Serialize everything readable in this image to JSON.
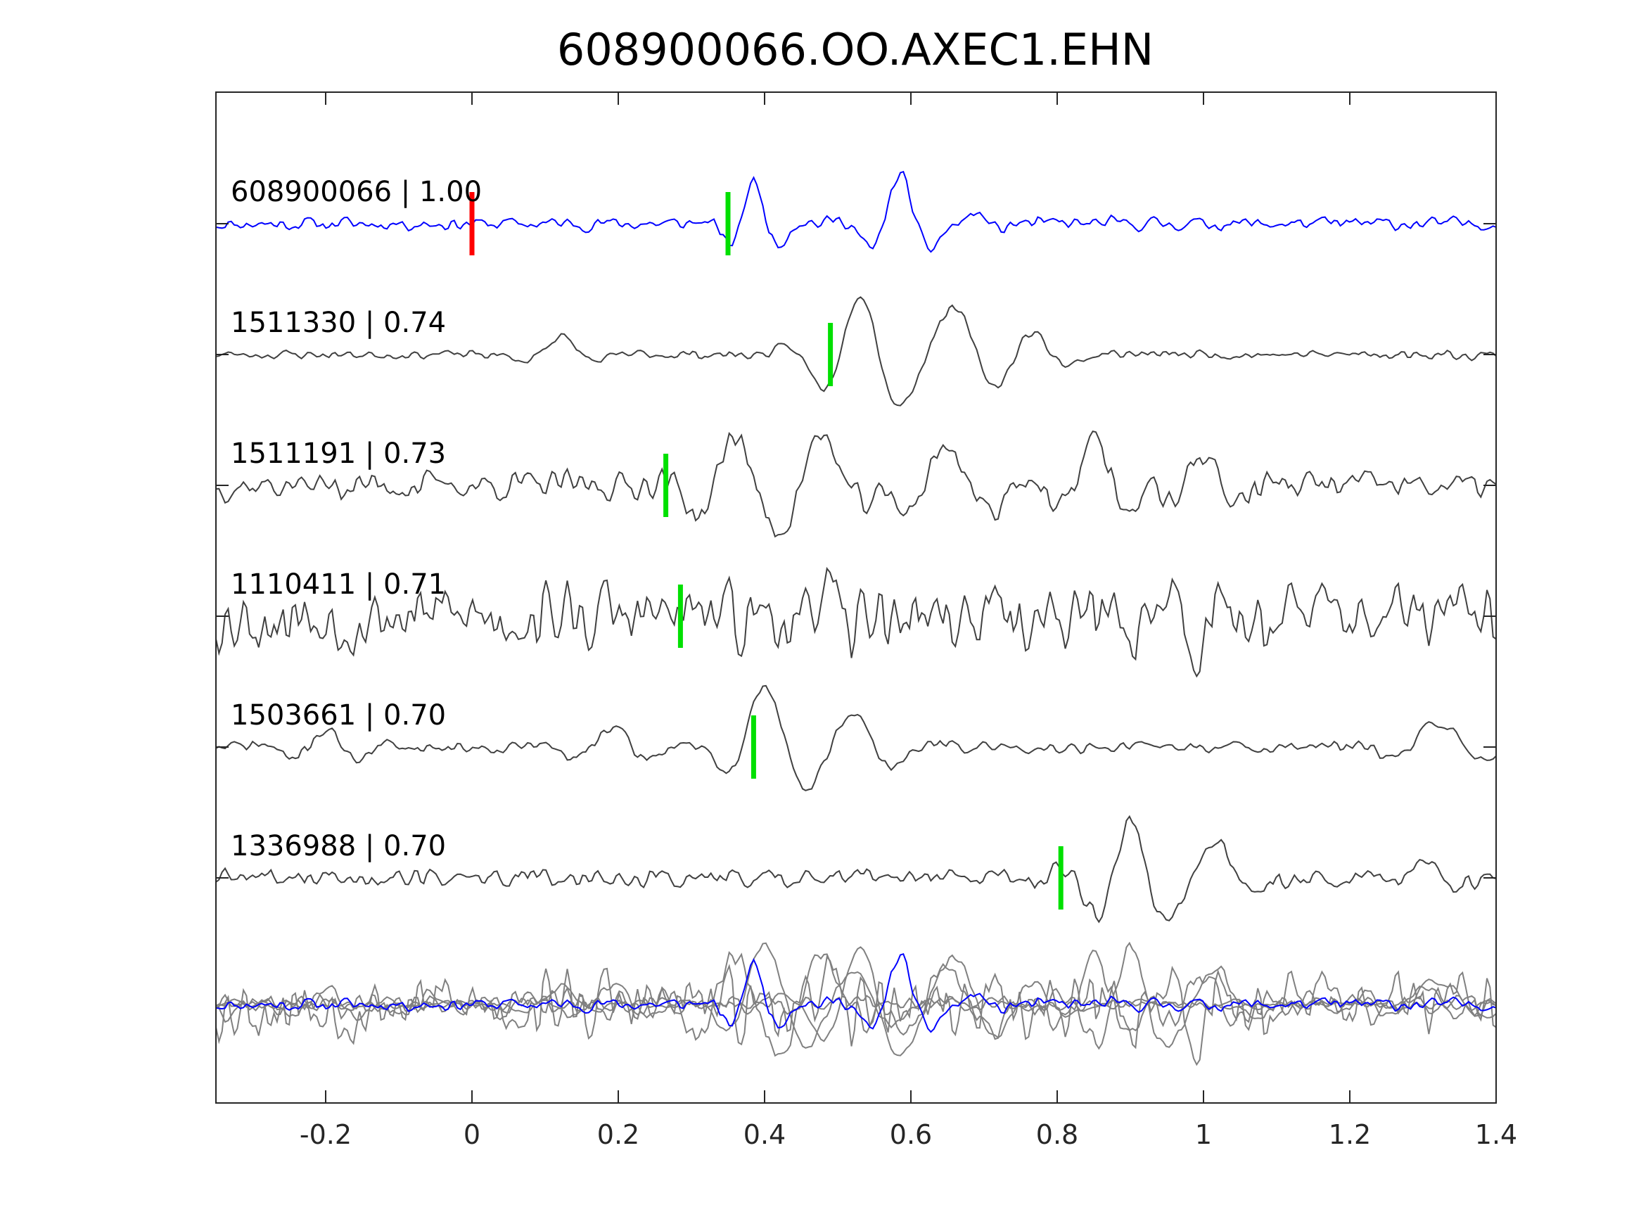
{
  "chart_data": {
    "type": "line",
    "title": "608900066.OO.AXEC1.EHN",
    "xlabel": "",
    "ylabel": "",
    "xlim": [
      -0.35,
      1.4
    ],
    "x_ticks": [
      "-0.2",
      "0",
      "0.2",
      "0.4",
      "0.6",
      "0.8",
      "1",
      "1.2",
      "1.4"
    ],
    "x_tick_values": [
      -0.2,
      0,
      0.2,
      0.4,
      0.6,
      0.8,
      1.0,
      1.2,
      1.4
    ],
    "grid": false,
    "legend": "none",
    "colors": {
      "reference": "#0000ff",
      "matches": "#404040",
      "stack": "#808080",
      "reference_pick": "#ff0000",
      "match_pick": "#00e000"
    },
    "series": [
      {
        "label": "608900066 | 1.00",
        "color": "reference",
        "pick_time": 0.0,
        "pick_color": "reference_pick",
        "detection_time": 0.35,
        "noise": 0.12,
        "seed": 11,
        "wavelets": [
          {
            "t": 0.385,
            "amp": 0.85,
            "freq": 13.0,
            "width": 0.03
          },
          {
            "t": 0.585,
            "amp": 1.0,
            "freq": 11.0,
            "width": 0.038
          },
          {
            "t": 0.69,
            "amp": 0.2,
            "freq": 14.0,
            "width": 0.03
          }
        ]
      },
      {
        "label": "1511330 | 0.74",
        "color": "matches",
        "detection_time": 0.49,
        "noise": 0.07,
        "seed": 23,
        "wavelets": [
          {
            "t": 0.53,
            "amp": 1.0,
            "freq": 9.0,
            "width": 0.05
          },
          {
            "t": 0.66,
            "amp": 0.75,
            "freq": 7.0,
            "width": 0.06
          },
          {
            "t": 0.76,
            "amp": 0.4,
            "freq": 8.0,
            "width": 0.05
          },
          {
            "t": 0.12,
            "amp": 0.3,
            "freq": 8.0,
            "width": 0.04
          }
        ]
      },
      {
        "label": "1511191 | 0.73",
        "color": "matches",
        "detection_time": 0.265,
        "noise": 0.22,
        "seed": 37,
        "wavelets": [
          {
            "t": 0.36,
            "amp": 0.85,
            "freq": 9.0,
            "width": 0.05
          },
          {
            "t": 0.48,
            "amp": 0.8,
            "freq": 8.0,
            "width": 0.05
          },
          {
            "t": 0.65,
            "amp": 0.7,
            "freq": 8.0,
            "width": 0.06
          },
          {
            "t": 0.85,
            "amp": 0.8,
            "freq": 9.0,
            "width": 0.05
          },
          {
            "t": 1.0,
            "amp": 0.6,
            "freq": 10.0,
            "width": 0.04
          }
        ]
      },
      {
        "label": "1110411 | 0.71",
        "color": "matches",
        "detection_time": 0.285,
        "noise": 0.55,
        "seed": 53,
        "wavelets": [
          {
            "t": 0.48,
            "amp": 0.6,
            "freq": 14.0,
            "width": 0.04
          },
          {
            "t": 0.95,
            "amp": 0.5,
            "freq": 12.0,
            "width": 0.05
          }
        ]
      },
      {
        "label": "1503661 | 0.70",
        "color": "matches",
        "detection_time": 0.385,
        "noise": 0.09,
        "seed": 71,
        "wavelets": [
          {
            "t": 0.4,
            "amp": 1.0,
            "freq": 8.0,
            "width": 0.045
          },
          {
            "t": 0.52,
            "amp": 0.55,
            "freq": 8.0,
            "width": 0.06
          },
          {
            "t": 0.19,
            "amp": 0.35,
            "freq": 9.0,
            "width": 0.05
          },
          {
            "t": -0.2,
            "amp": 0.3,
            "freq": 10.0,
            "width": 0.05
          },
          {
            "t": 1.32,
            "amp": 0.45,
            "freq": 7.0,
            "width": 0.05
          }
        ]
      },
      {
        "label": "1336988 | 0.70",
        "color": "matches",
        "detection_time": 0.805,
        "noise": 0.15,
        "seed": 89,
        "wavelets": [
          {
            "t": 0.9,
            "amp": 1.0,
            "freq": 10.0,
            "width": 0.05
          },
          {
            "t": 1.02,
            "amp": 0.55,
            "freq": 9.0,
            "width": 0.04
          },
          {
            "t": 1.3,
            "amp": 0.3,
            "freq": 9.0,
            "width": 0.04
          }
        ]
      }
    ]
  }
}
